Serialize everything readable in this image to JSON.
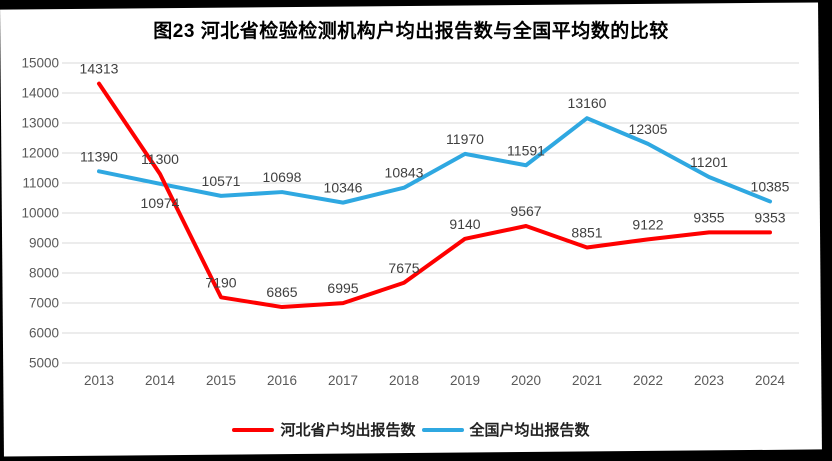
{
  "title": "图23  河北省检验检测机构户均出报告数与全国平均数的比较",
  "colors": {
    "frame": "#000000",
    "paper": "#ffffff",
    "grid": "#d9d9d9",
    "axis_text": "#595959",
    "data_label": "#404040",
    "hebei_red": "#fe0000",
    "national_blue": "#2fa8e1"
  },
  "chart_data": {
    "type": "line",
    "title": "图23  河北省检验检测机构户均出报告数与全国平均数的比较",
    "categories": [
      "2013",
      "2014",
      "2015",
      "2016",
      "2017",
      "2018",
      "2019",
      "2020",
      "2021",
      "2022",
      "2023",
      "2024"
    ],
    "series": [
      {
        "name": "河北省户均出报告数",
        "color": "#fe0000",
        "values": [
          14313,
          11300,
          7190,
          6865,
          6995,
          7675,
          9140,
          9567,
          8851,
          9122,
          9355,
          9353
        ],
        "labels_below": []
      },
      {
        "name": "全国户均出报告数",
        "color": "#2fa8e1",
        "values": [
          11390,
          10974,
          10571,
          10698,
          10346,
          10843,
          11970,
          11591,
          13160,
          12305,
          11201,
          10385
        ],
        "labels_below": [
          1
        ]
      }
    ],
    "xlabel": "",
    "ylabel": "",
    "ylim": [
      5000,
      15000
    ],
    "ytick_step": 1000,
    "yticks": [
      5000,
      6000,
      7000,
      8000,
      9000,
      10000,
      11000,
      12000,
      13000,
      14000,
      15000
    ],
    "grid": true,
    "legend_position": "bottom"
  }
}
